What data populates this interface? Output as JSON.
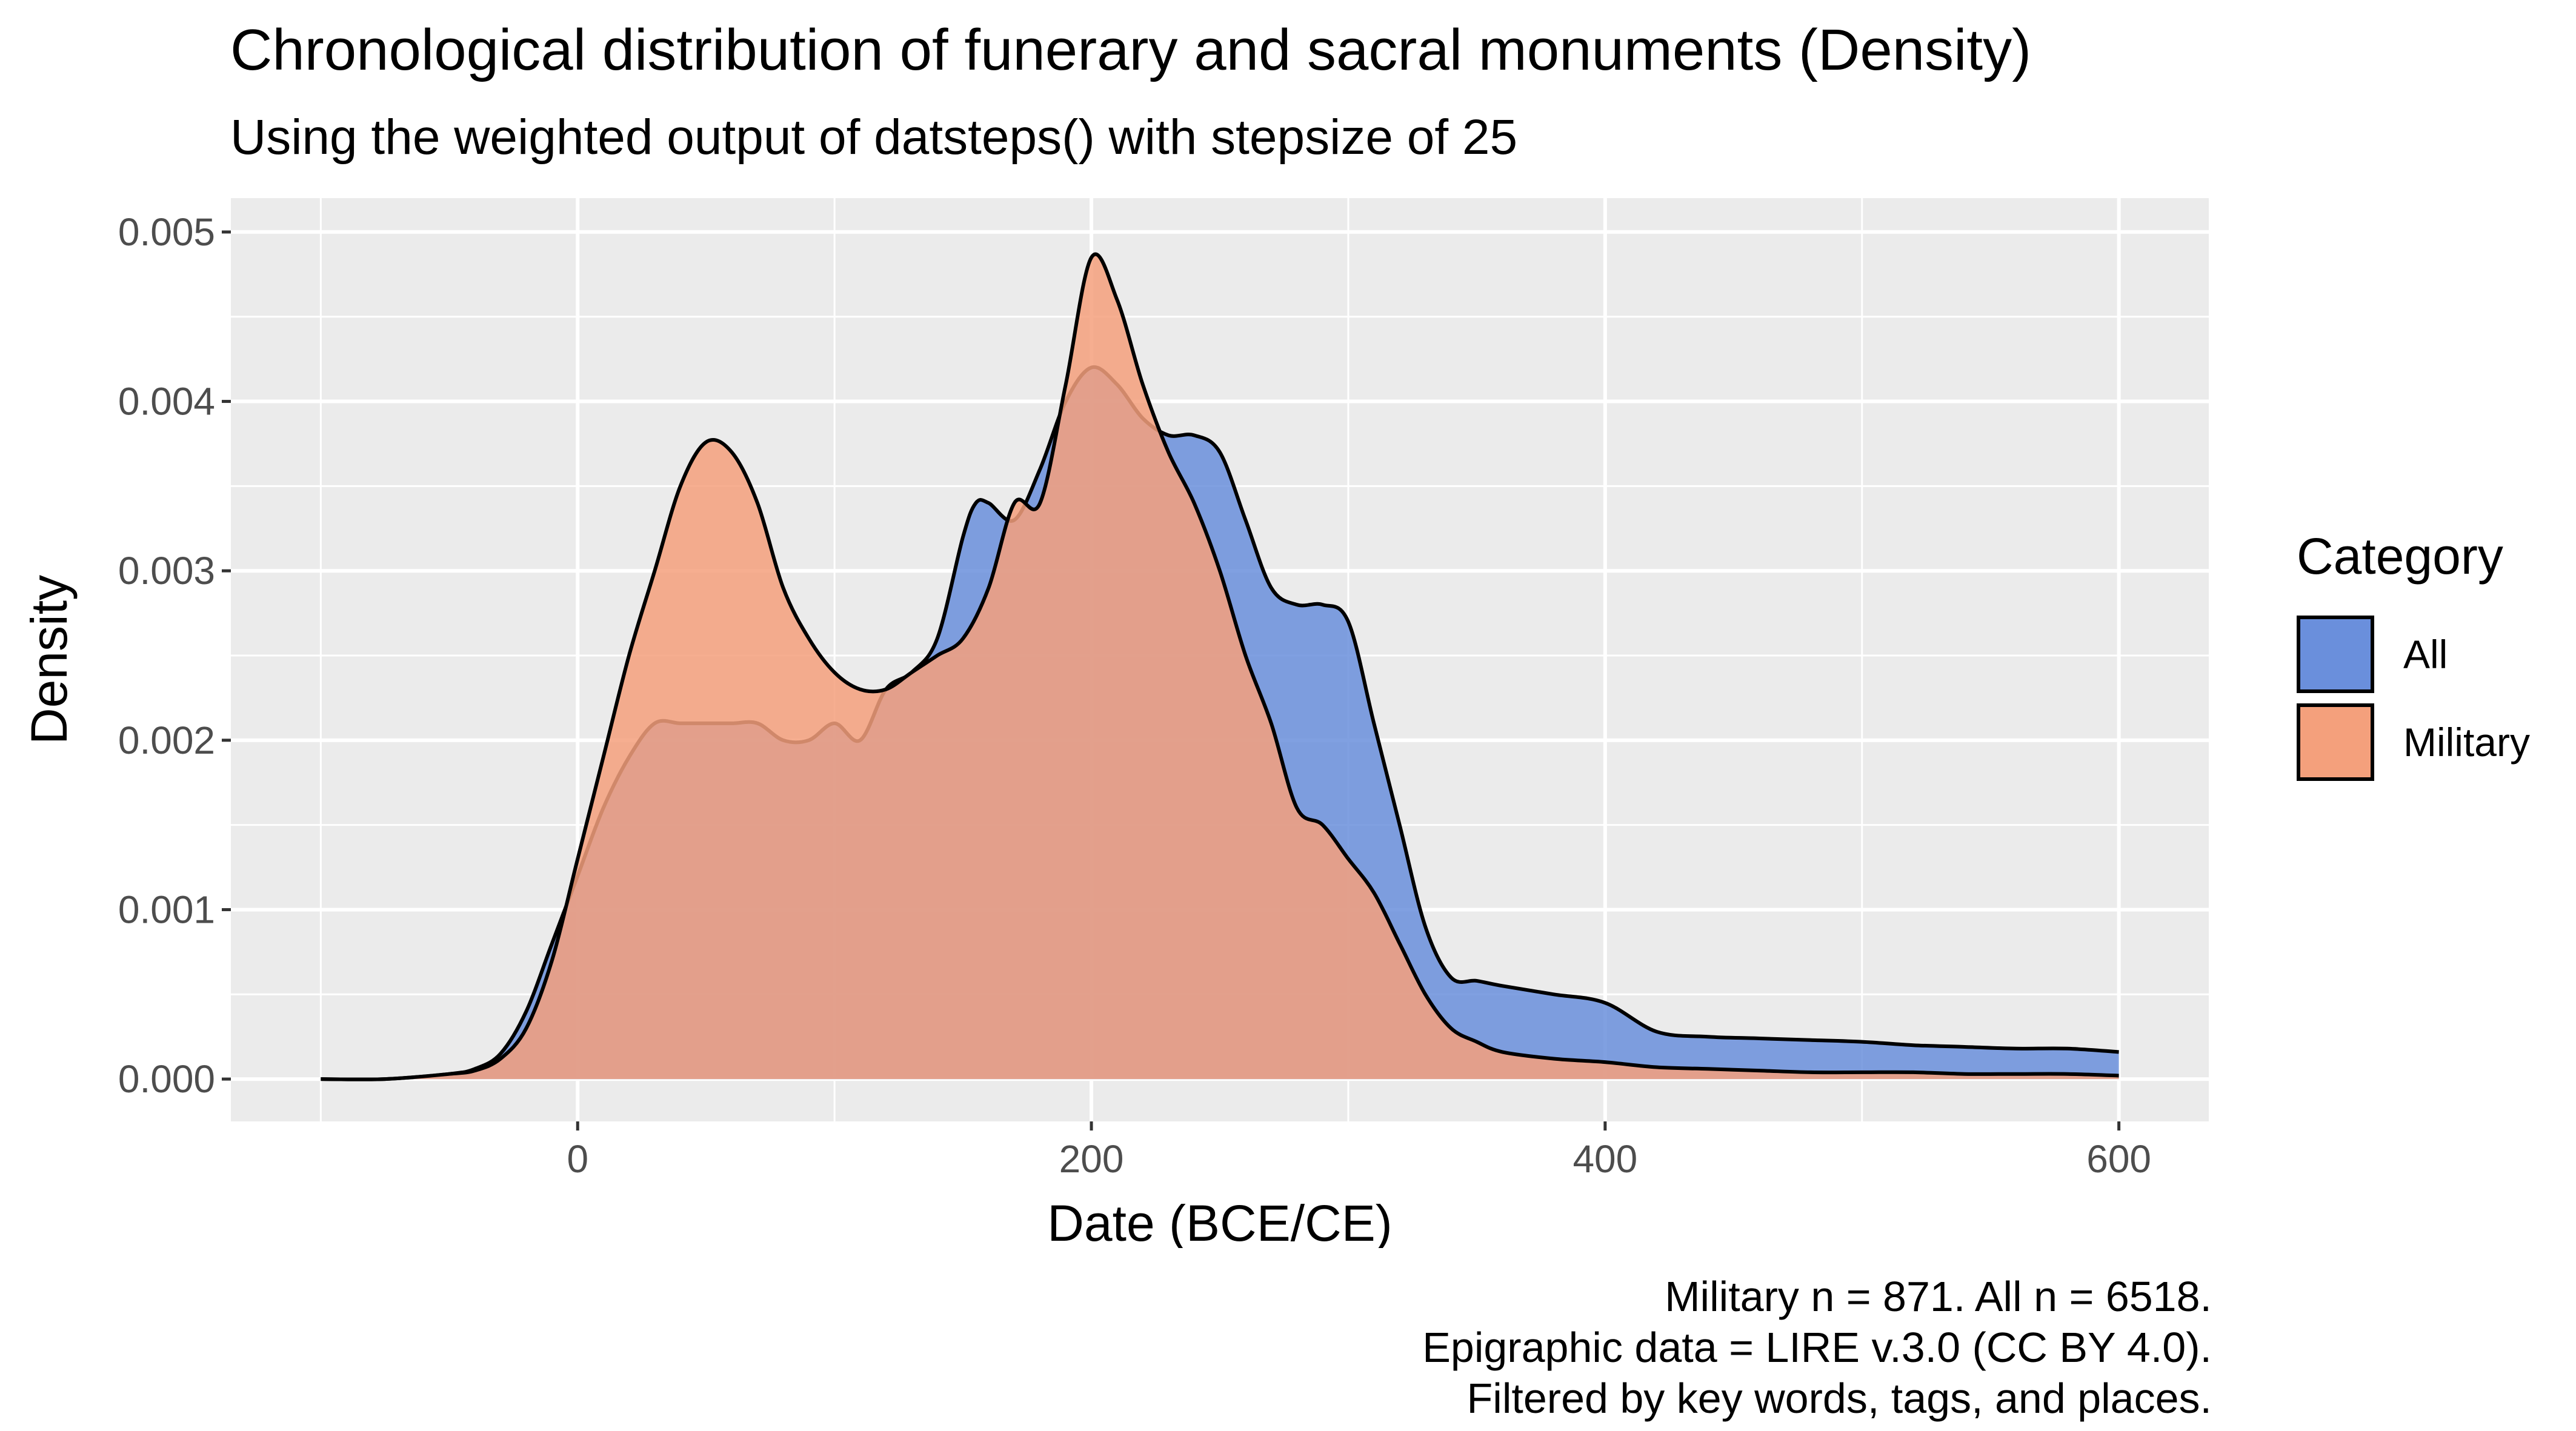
{
  "chart_data": {
    "type": "area",
    "title": "Chronological distribution of funerary and sacral monuments (Density)",
    "subtitle": "Using the weighted output of datsteps() with stepsize of 25",
    "xlabel": "Date (BCE/CE)",
    "ylabel": "Density",
    "xlim": [
      -135,
      635
    ],
    "ylim": [
      -0.00025,
      0.0052
    ],
    "x_ticks": [
      0,
      200,
      400,
      600
    ],
    "x_tick_labels": [
      "0",
      "200",
      "400",
      "600"
    ],
    "y_ticks": [
      0,
      0.001,
      0.002,
      0.003,
      0.004,
      0.005
    ],
    "y_tick_labels": [
      "0.000",
      "0.001",
      "0.002",
      "0.003",
      "0.004",
      "0.005"
    ],
    "grid": true,
    "legend": {
      "title": "Category",
      "position": "right"
    },
    "caption": [
      "Military n = 871. All n = 6518.",
      "Epigraphic data = LIRE v.3.0 (CC BY 4.0).",
      "Filtered by key words, tags, and places."
    ],
    "series": [
      {
        "name": "All",
        "color": "#6a8fdc",
        "x": [
          -100,
          -75,
          -50,
          -40,
          -30,
          -20,
          -10,
          0,
          10,
          20,
          30,
          40,
          50,
          60,
          70,
          80,
          90,
          100,
          110,
          120,
          130,
          140,
          150,
          155,
          160,
          170,
          180,
          190,
          200,
          210,
          220,
          230,
          240,
          250,
          260,
          270,
          280,
          290,
          300,
          310,
          320,
          330,
          340,
          350,
          360,
          380,
          400,
          420,
          440,
          460,
          480,
          500,
          520,
          540,
          560,
          580,
          600
        ],
        "values": [
          0,
          0,
          3e-05,
          6e-05,
          0.00015,
          0.0004,
          0.0008,
          0.0012,
          0.0016,
          0.0019,
          0.0021,
          0.0021,
          0.0021,
          0.0021,
          0.0021,
          0.002,
          0.002,
          0.0021,
          0.002,
          0.0023,
          0.0024,
          0.0026,
          0.0032,
          0.0034,
          0.0034,
          0.0033,
          0.0036,
          0.004,
          0.0042,
          0.0041,
          0.0039,
          0.0038,
          0.0038,
          0.0037,
          0.0033,
          0.0029,
          0.0028,
          0.0028,
          0.0027,
          0.0021,
          0.0015,
          0.0009,
          0.0006,
          0.00058,
          0.00055,
          0.0005,
          0.00045,
          0.00028,
          0.00025,
          0.00024,
          0.00023,
          0.00022,
          0.0002,
          0.00019,
          0.00018,
          0.00018,
          0.00016
        ]
      },
      {
        "name": "Military",
        "color": "#f4a07c",
        "x": [
          -100,
          -75,
          -50,
          -40,
          -30,
          -20,
          -10,
          0,
          10,
          20,
          30,
          40,
          50,
          60,
          70,
          80,
          90,
          100,
          110,
          120,
          130,
          140,
          150,
          160,
          170,
          180,
          190,
          200,
          210,
          220,
          230,
          240,
          250,
          260,
          270,
          280,
          290,
          300,
          310,
          320,
          330,
          340,
          350,
          360,
          380,
          400,
          420,
          440,
          460,
          480,
          500,
          520,
          540,
          560,
          580,
          600
        ],
        "values": [
          0,
          0,
          3e-05,
          5e-05,
          0.00012,
          0.0003,
          0.0007,
          0.0013,
          0.0019,
          0.0025,
          0.003,
          0.0035,
          0.00376,
          0.0037,
          0.0034,
          0.0029,
          0.0026,
          0.0024,
          0.0023,
          0.0023,
          0.0024,
          0.0025,
          0.0026,
          0.0029,
          0.0034,
          0.0034,
          0.0041,
          0.00485,
          0.0046,
          0.0041,
          0.0037,
          0.0034,
          0.003,
          0.0025,
          0.0021,
          0.0016,
          0.0015,
          0.0013,
          0.0011,
          0.0008,
          0.0005,
          0.0003,
          0.00022,
          0.00016,
          0.00012,
          0.0001,
          7e-05,
          6e-05,
          5e-05,
          4e-05,
          4e-05,
          4e-05,
          3e-05,
          3e-05,
          3e-05,
          2e-05
        ]
      }
    ]
  }
}
